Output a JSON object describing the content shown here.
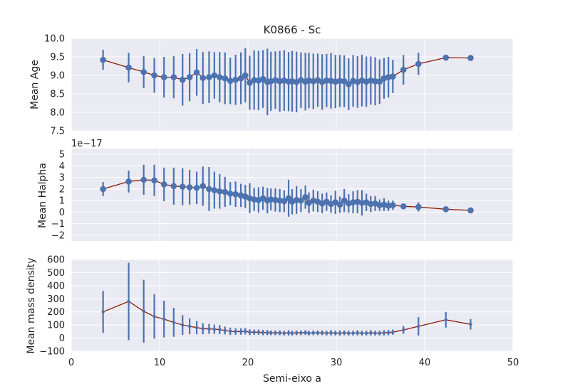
{
  "chart_data": [
    {
      "type": "scatter",
      "title": "K0866 - Sc",
      "ylabel": "Mean Age",
      "xlabel": "",
      "xlim": [
        0,
        50
      ],
      "ylim": [
        7.5,
        10.0
      ],
      "yticks": [
        "7.5",
        "8.0",
        "8.5",
        "9.0",
        "9.5",
        "10.0"
      ],
      "ytick_values": [
        7.5,
        8.0,
        8.5,
        9.0,
        9.5,
        10.0
      ],
      "grid": true,
      "series": [
        {
          "x": [
            3.6,
            6.5,
            8.2,
            9.4,
            10.5,
            11.6,
            12.6,
            13.4,
            14.2,
            14.9,
            15.6,
            16.2,
            16.8,
            17.4,
            18.0,
            18.6,
            19.2,
            19.7,
            20.2,
            20.7,
            21.2,
            21.7,
            22.2,
            22.6,
            23.1,
            23.6,
            24.1,
            24.6,
            25.0,
            25.5,
            26.0,
            26.5,
            26.9,
            27.4,
            27.9,
            28.4,
            28.9,
            29.4,
            29.9,
            30.4,
            30.9,
            31.4,
            31.9,
            32.4,
            32.9,
            33.4,
            33.9,
            34.4,
            34.9,
            35.4,
            35.9,
            36.4,
            37.6,
            39.3,
            42.4,
            45.2
          ],
          "y": [
            9.42,
            9.21,
            9.09,
            9.0,
            8.95,
            8.95,
            8.88,
            8.95,
            9.08,
            8.93,
            8.95,
            9.0,
            8.95,
            8.92,
            8.85,
            8.88,
            8.92,
            9.0,
            8.8,
            8.87,
            8.86,
            8.9,
            8.82,
            8.84,
            8.87,
            8.84,
            8.86,
            8.83,
            8.84,
            8.82,
            8.87,
            8.83,
            8.86,
            8.84,
            8.87,
            8.82,
            8.86,
            8.85,
            8.83,
            8.85,
            8.84,
            8.76,
            8.85,
            8.82,
            8.86,
            8.83,
            8.86,
            8.84,
            8.83,
            8.92,
            8.95,
            8.97,
            9.15,
            9.31,
            9.48,
            9.47
          ],
          "err": [
            0.27,
            0.4,
            0.43,
            0.47,
            0.55,
            0.57,
            0.7,
            0.65,
            0.63,
            0.7,
            0.7,
            0.63,
            0.68,
            0.7,
            0.63,
            0.68,
            0.7,
            0.73,
            0.73,
            0.8,
            0.8,
            0.78,
            0.9,
            0.8,
            0.78,
            0.82,
            0.82,
            0.8,
            0.82,
            0.82,
            0.75,
            0.78,
            0.75,
            0.75,
            0.72,
            0.75,
            0.72,
            0.75,
            0.72,
            0.7,
            0.7,
            0.7,
            0.7,
            0.7,
            0.7,
            0.68,
            0.65,
            0.65,
            0.6,
            0.55,
            0.55,
            0.45,
            0.4,
            0.3,
            0.0,
            0.0
          ]
        }
      ]
    },
    {
      "type": "scatter",
      "title": "",
      "ylabel": "Mean Halpha",
      "xlabel": "",
      "offset_text": "1e−17",
      "xlim": [
        0,
        50
      ],
      "ylim": [
        -2.5,
        5.5
      ],
      "yticks": [
        "−2",
        "−1",
        "0",
        "1",
        "2",
        "3",
        "4",
        "5"
      ],
      "ytick_values": [
        -2,
        -1,
        0,
        1,
        2,
        3,
        4,
        5
      ],
      "grid": true,
      "series": [
        {
          "x": [
            3.6,
            6.5,
            8.2,
            9.4,
            10.5,
            11.6,
            12.6,
            13.4,
            14.2,
            14.9,
            15.6,
            16.2,
            16.8,
            17.4,
            18.0,
            18.6,
            19.2,
            19.7,
            20.2,
            20.7,
            21.2,
            21.7,
            22.2,
            22.6,
            23.1,
            23.6,
            24.1,
            24.6,
            25.0,
            25.5,
            26.0,
            26.5,
            26.9,
            27.4,
            27.9,
            28.4,
            28.9,
            29.4,
            29.9,
            30.4,
            30.9,
            31.4,
            31.9,
            32.4,
            32.9,
            33.4,
            33.9,
            34.4,
            34.9,
            35.4,
            35.9,
            36.4,
            37.6,
            39.3,
            42.4,
            45.2
          ],
          "y": [
            2.0,
            2.65,
            2.8,
            2.75,
            2.4,
            2.25,
            2.2,
            2.15,
            2.1,
            2.25,
            2.0,
            1.9,
            1.8,
            1.75,
            1.6,
            1.55,
            1.45,
            1.35,
            1.2,
            1.1,
            1.05,
            1.2,
            1.0,
            1.1,
            1.05,
            1.0,
            0.95,
            1.2,
            0.9,
            1.05,
            1.0,
            1.3,
            0.8,
            1.0,
            0.9,
            0.75,
            0.9,
            0.7,
            0.85,
            0.65,
            1.0,
            0.75,
            0.85,
            0.9,
            0.8,
            0.85,
            0.7,
            0.75,
            0.6,
            0.65,
            0.55,
            0.6,
            0.5,
            0.45,
            0.25,
            0.15
          ],
          "err": [
            0.6,
            0.95,
            1.3,
            1.35,
            1.45,
            1.6,
            1.6,
            1.5,
            1.4,
            1.7,
            1.9,
            1.6,
            1.5,
            1.3,
            1.0,
            1.1,
            1.0,
            1.0,
            1.3,
            1.0,
            1.1,
            1.0,
            1.1,
            0.95,
            1.0,
            1.0,
            0.95,
            1.6,
            1.1,
            1.2,
            1.0,
            1.0,
            0.9,
            0.95,
            0.9,
            0.85,
            0.8,
            0.75,
            1.0,
            0.7,
            1.0,
            0.8,
            0.95,
            1.0,
            1.1,
            0.75,
            0.7,
            0.65,
            0.5,
            0.55,
            0.45,
            0.4,
            0.0,
            0.4,
            0.0,
            0.0
          ]
        }
      ]
    },
    {
      "type": "scatter",
      "title": "",
      "ylabel": "Mean mass density",
      "xlabel": "Semi-eixo a",
      "xlim": [
        0,
        50
      ],
      "ylim": [
        -100,
        600
      ],
      "xticks": [
        "0",
        "10",
        "20",
        "30",
        "40",
        "50"
      ],
      "xtick_values": [
        0,
        10,
        20,
        30,
        40,
        50
      ],
      "yticks": [
        "−100",
        "0",
        "100",
        "200",
        "300",
        "400",
        "500",
        "600"
      ],
      "ytick_values": [
        -100,
        0,
        100,
        200,
        300,
        400,
        500,
        600
      ],
      "grid": true,
      "series": [
        {
          "x": [
            3.6,
            6.5,
            8.2,
            9.4,
            10.5,
            11.6,
            12.6,
            13.4,
            14.2,
            14.9,
            15.6,
            16.2,
            16.8,
            17.4,
            18.0,
            18.6,
            19.2,
            19.7,
            20.2,
            20.7,
            21.2,
            21.7,
            22.2,
            22.6,
            23.1,
            23.6,
            24.1,
            24.6,
            25.0,
            25.5,
            26.0,
            26.5,
            26.9,
            27.4,
            27.9,
            28.4,
            28.9,
            29.4,
            29.9,
            30.4,
            30.9,
            31.4,
            31.9,
            32.4,
            32.9,
            33.4,
            33.9,
            34.4,
            34.9,
            35.4,
            35.9,
            36.4,
            37.6,
            39.3,
            42.4,
            45.2
          ],
          "y": [
            200,
            280,
            205,
            165,
            145,
            120,
            100,
            90,
            80,
            72,
            70,
            68,
            65,
            58,
            52,
            50,
            50,
            52,
            45,
            45,
            45,
            42,
            42,
            40,
            40,
            40,
            38,
            40,
            38,
            40,
            40,
            42,
            38,
            40,
            40,
            40,
            38,
            40,
            38,
            38,
            40,
            38,
            38,
            40,
            38,
            38,
            40,
            38,
            38,
            40,
            42,
            45,
            62,
            90,
            140,
            105
          ],
          "err": [
            160,
            295,
            240,
            170,
            140,
            110,
            75,
            60,
            50,
            42,
            38,
            35,
            35,
            30,
            28,
            25,
            24,
            24,
            22,
            20,
            20,
            20,
            20,
            18,
            18,
            18,
            18,
            20,
            18,
            18,
            18,
            18,
            18,
            18,
            18,
            18,
            18,
            20,
            18,
            20,
            18,
            18,
            18,
            20,
            18,
            18,
            20,
            18,
            18,
            20,
            20,
            20,
            30,
            70,
            60,
            40
          ]
        }
      ]
    }
  ],
  "colors": {
    "axes_background": "#EAEAF2",
    "grid": "#FFFFFF",
    "errorbar": "#4C72B0",
    "marker": "#4C72B0",
    "line": "#8B1A00"
  }
}
